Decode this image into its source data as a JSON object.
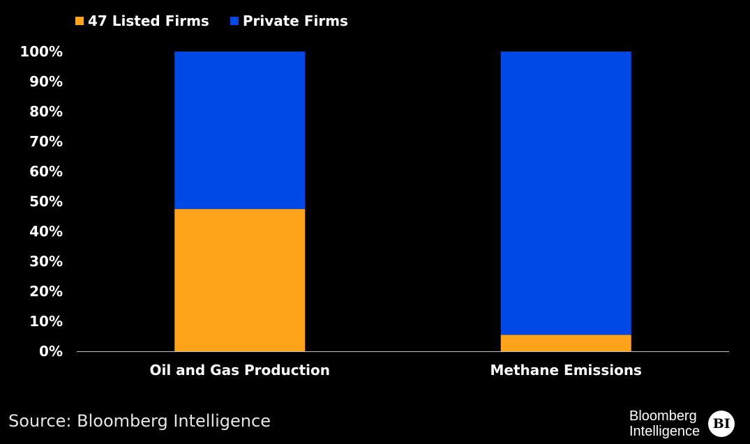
{
  "chart_data": {
    "type": "bar",
    "stacked": true,
    "categories": [
      "Oil and Gas Production",
      "Methane Emissions"
    ],
    "series": [
      {
        "name": "47 Listed Firms",
        "values": [
          47.5,
          5.5
        ],
        "color": "#ffa31a"
      },
      {
        "name": "Private Firms",
        "values": [
          52.5,
          94.5
        ],
        "color": "#0049e6"
      }
    ],
    "ylim": [
      0,
      100
    ],
    "yticks": [
      "0%",
      "10%",
      "20%",
      "30%",
      "40%",
      "50%",
      "60%",
      "70%",
      "80%",
      "90%",
      "100%"
    ],
    "grid": false,
    "legend": "top-left"
  },
  "source": "Source: Bloomberg Intelligence",
  "logo": {
    "line1": "Bloomberg",
    "line2": "Intelligence",
    "badge": "BI"
  }
}
